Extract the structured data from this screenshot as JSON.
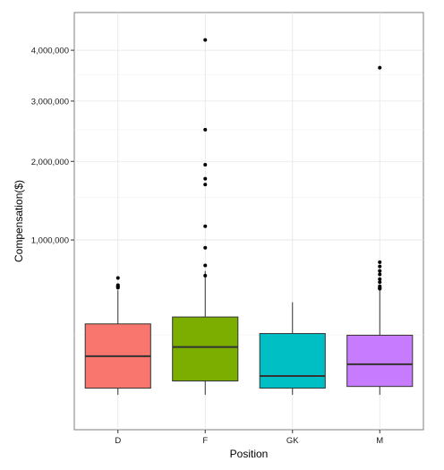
{
  "chart_data": {
    "type": "box",
    "title": "",
    "xlabel": "Position",
    "ylabel": "Compensation($)",
    "y_scale": "sqrt",
    "ylim": [
      0,
      4700000
    ],
    "y_ticks": [
      1000000,
      2000000,
      3000000,
      4000000
    ],
    "y_tick_labels": [
      "1,000,000",
      "2,000,000",
      "3,000,000",
      "4,000,000"
    ],
    "y_minor_ticks": [
      250000,
      1500000,
      2500000,
      3500000
    ],
    "grid": true,
    "legend": "none",
    "categories": [
      "D",
      "F",
      "GK",
      "M"
    ],
    "boxes": [
      {
        "category": "D",
        "color": "#F8766D",
        "whisker_low": 34000,
        "q1": 48000,
        "median": 150000,
        "q3": 311000,
        "whisker_high": 540000,
        "outliers": [
          560000,
          567000,
          572000,
          581000,
          640000
        ]
      },
      {
        "category": "F",
        "color": "#7CAE00",
        "whisker_low": 34000,
        "q1": 66000,
        "median": 190000,
        "q3": 353000,
        "whisker_high": 700000,
        "outliers": [
          660000,
          750000,
          920000,
          1150000,
          1670000,
          1750000,
          1950000,
          2500000,
          4220000
        ]
      },
      {
        "category": "GK",
        "color": "#00BFC4",
        "whisker_low": 34000,
        "q1": 48000,
        "median": 80000,
        "q3": 257000,
        "whisker_high": 451000,
        "outliers": []
      },
      {
        "category": "M",
        "color": "#C77CFF",
        "whisker_low": 34000,
        "q1": 52000,
        "median": 119000,
        "q3": 248000,
        "whisker_high": 539000,
        "outliers": [
          552000,
          557000,
          560000,
          572000,
          605000,
          630000,
          670000,
          700000,
          740000,
          780000,
          3640000
        ]
      }
    ]
  }
}
